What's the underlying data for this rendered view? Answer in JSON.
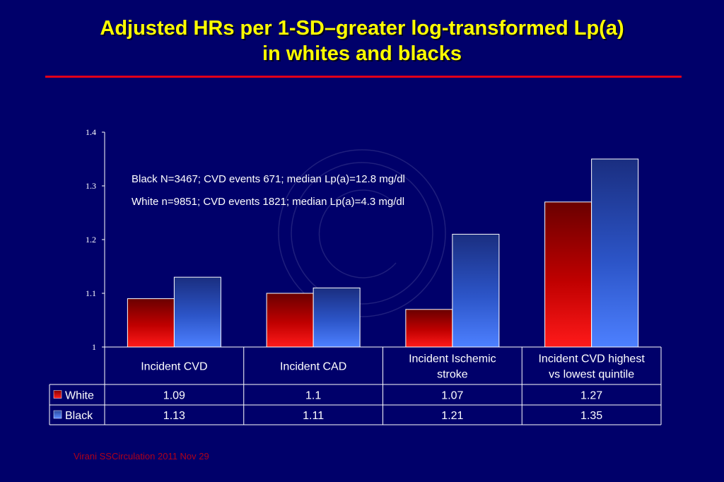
{
  "slide": {
    "title_line1": "Adjusted HRs per 1-SD–greater log-transformed Lp(a)",
    "title_line2": "in whites and blacks",
    "note_black": "Black N=3467; CVD events 671; median Lp(a)=12.8 mg/dl",
    "note_white": "White n=9851; CVD events 1821; median Lp(a)=4.3 mg/dl",
    "source": "Virani SSCirculation 2011 Nov 29"
  },
  "colors": {
    "background": "#00006a",
    "title": "#ffff00",
    "rule": "#e0001a",
    "white_series": "#e00000",
    "black_series": "#3366ff",
    "text": "#ffffff"
  },
  "chart_data": {
    "type": "bar",
    "categories": [
      [
        "Incident CVD"
      ],
      [
        "Incident CAD"
      ],
      [
        "Incident Ischemic",
        "stroke"
      ],
      [
        "Incident CVD highest",
        "vs lowest quintile"
      ]
    ],
    "series": [
      {
        "name": "White",
        "values": [
          1.09,
          1.1,
          1.07,
          1.27
        ],
        "labels": [
          "1.09",
          "1.1",
          "1.07",
          "1.27"
        ]
      },
      {
        "name": "Black",
        "values": [
          1.13,
          1.11,
          1.21,
          1.35
        ],
        "labels": [
          "1.13",
          "1.11",
          "1.21",
          "1.35"
        ]
      }
    ],
    "ylim": [
      1,
      1.4
    ],
    "yticks": [
      "1",
      "1.1",
      "1.2",
      "1.3",
      "1.4"
    ],
    "grid": false,
    "legend": "data-table"
  }
}
